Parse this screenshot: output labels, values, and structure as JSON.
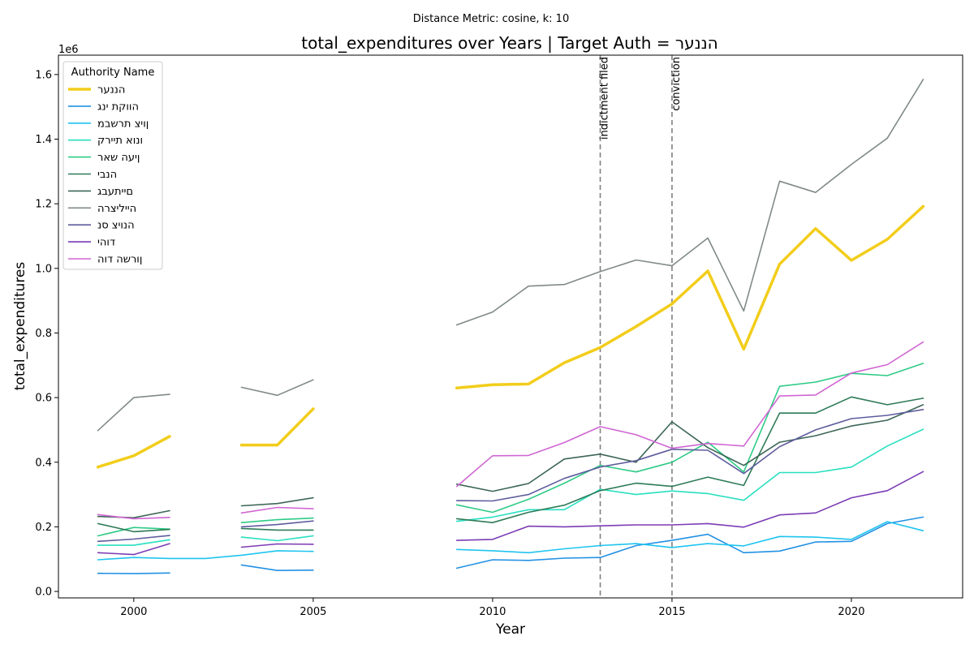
{
  "chart_data": {
    "type": "line",
    "suptitle": "Distance Metric: cosine, k: 10",
    "title": "total_expenditures over Years | Target Auth = הננער",
    "xlabel": "Year",
    "ylabel": "total_expenditures",
    "y_offset_text": "1e6",
    "xlim": [
      1997.9,
      2023.1
    ],
    "ylim": [
      -0.02,
      1.66
    ],
    "y_scale": 1000000,
    "xticks": [
      2000,
      2005,
      2010,
      2015,
      2020
    ],
    "xtick_labels": [
      "2000",
      "2005",
      "2010",
      "2015",
      "2020"
    ],
    "yticks": [
      0.0,
      0.2,
      0.4,
      0.6,
      0.8,
      1.0,
      1.2,
      1.4,
      1.6
    ],
    "ytick_labels": [
      "0.0",
      "0.2",
      "0.4",
      "0.6",
      "0.8",
      "1.0",
      "1.2",
      "1.4",
      "1.6"
    ],
    "grid": false,
    "legend_title": "Authority Name",
    "legend_placement": "top-left",
    "x": [
      1999,
      2000,
      2001,
      2002,
      2003,
      2004,
      2005,
      2006,
      2007,
      2008,
      2009,
      2010,
      2011,
      2012,
      2013,
      2014,
      2015,
      2016,
      2017,
      2018,
      2019,
      2020,
      2021,
      2022
    ],
    "annotations": [
      {
        "x": 2013,
        "label": "indictment filed"
      },
      {
        "x": 2015,
        "label": "conviction"
      }
    ],
    "series": [
      {
        "name": "הננער",
        "color": "#f2cd1b",
        "target": true,
        "values": [
          0.385,
          0.42,
          0.48,
          null,
          0.453,
          0.453,
          0.565,
          null,
          null,
          null,
          0.63,
          0.64,
          0.642,
          0.708,
          0.755,
          0.82,
          0.89,
          0.992,
          0.75,
          1.013,
          1.123,
          1.025,
          1.09,
          1.192
        ]
      },
      {
        "name": "הווקת ינג",
        "color": "#2291e3",
        "values": [
          0.056,
          0.055,
          0.057,
          null,
          0.082,
          0.065,
          0.066,
          null,
          null,
          null,
          0.072,
          0.098,
          0.096,
          0.103,
          0.105,
          0.142,
          0.158,
          0.177,
          0.12,
          0.125,
          0.153,
          0.155,
          0.21,
          0.23
        ]
      },
      {
        "name": "ןויצ תרשבמ",
        "color": "#1fc4ef",
        "values": [
          0.098,
          0.105,
          0.102,
          0.102,
          0.112,
          0.126,
          0.124,
          null,
          null,
          null,
          0.13,
          0.126,
          0.12,
          0.132,
          0.142,
          0.148,
          0.136,
          0.148,
          0.141,
          0.17,
          0.168,
          0.161,
          0.216,
          0.188
        ]
      },
      {
        "name": "ונוא תיירק",
        "color": "#28dfc0",
        "values": [
          0.143,
          0.143,
          0.16,
          null,
          0.168,
          0.157,
          0.172,
          null,
          null,
          null,
          0.217,
          0.23,
          0.253,
          0.253,
          0.316,
          0.3,
          0.311,
          0.303,
          0.282,
          0.368,
          0.368,
          0.385,
          0.45,
          0.502
        ]
      },
      {
        "name": "ןיעה שאר",
        "color": "#2ecb86",
        "values": [
          0.172,
          0.198,
          0.193,
          null,
          0.213,
          0.222,
          0.227,
          null,
          null,
          null,
          0.268,
          0.245,
          0.285,
          0.335,
          0.39,
          0.37,
          0.4,
          0.462,
          0.37,
          0.635,
          0.648,
          0.675,
          0.668,
          0.706
        ]
      },
      {
        "name": "הנבי",
        "color": "#2e7b57",
        "values": [
          0.21,
          0.185,
          0.192,
          null,
          0.195,
          0.19,
          0.19,
          null,
          null,
          null,
          0.225,
          0.213,
          0.245,
          0.267,
          0.312,
          0.335,
          0.325,
          0.354,
          0.328,
          0.552,
          0.552,
          0.602,
          0.578,
          0.598
        ]
      },
      {
        "name": "םייתעבג",
        "color": "#3d6657",
        "values": [
          0.232,
          0.228,
          0.25,
          null,
          0.265,
          0.272,
          0.29,
          null,
          null,
          null,
          0.332,
          0.31,
          0.334,
          0.41,
          0.425,
          0.4,
          0.525,
          0.445,
          0.39,
          0.462,
          0.482,
          0.512,
          0.53,
          0.578
        ]
      },
      {
        "name": "הייליצרה",
        "color": "#808b88",
        "values": [
          0.498,
          0.6,
          0.61,
          null,
          0.632,
          0.607,
          0.655,
          null,
          null,
          null,
          0.825,
          0.865,
          0.945,
          0.95,
          0.99,
          1.026,
          1.008,
          1.094,
          0.868,
          1.27,
          1.235,
          1.322,
          1.403,
          1.585
        ]
      },
      {
        "name": "הנויצ סנ",
        "color": "#5f5d9e",
        "values": [
          0.155,
          0.162,
          0.173,
          null,
          0.2,
          0.207,
          0.218,
          null,
          null,
          null,
          0.281,
          0.28,
          0.3,
          0.35,
          0.385,
          0.405,
          0.44,
          0.437,
          0.365,
          0.448,
          0.5,
          0.535,
          0.545,
          0.563
        ]
      },
      {
        "name": "דוהי",
        "color": "#7c3cb5",
        "values": [
          0.12,
          0.114,
          0.148,
          null,
          0.137,
          0.147,
          0.146,
          null,
          null,
          null,
          0.158,
          0.161,
          0.202,
          0.2,
          0.203,
          0.206,
          0.206,
          0.21,
          0.199,
          0.237,
          0.243,
          0.29,
          0.312,
          0.371
        ]
      },
      {
        "name": "ןורשה דוה",
        "color": "#d066d3",
        "values": [
          0.238,
          0.225,
          0.229,
          null,
          0.243,
          0.26,
          0.256,
          null,
          null,
          null,
          0.325,
          0.42,
          0.421,
          0.461,
          0.51,
          0.485,
          0.443,
          0.458,
          0.45,
          0.605,
          0.608,
          0.676,
          0.702,
          0.772
        ]
      }
    ]
  }
}
